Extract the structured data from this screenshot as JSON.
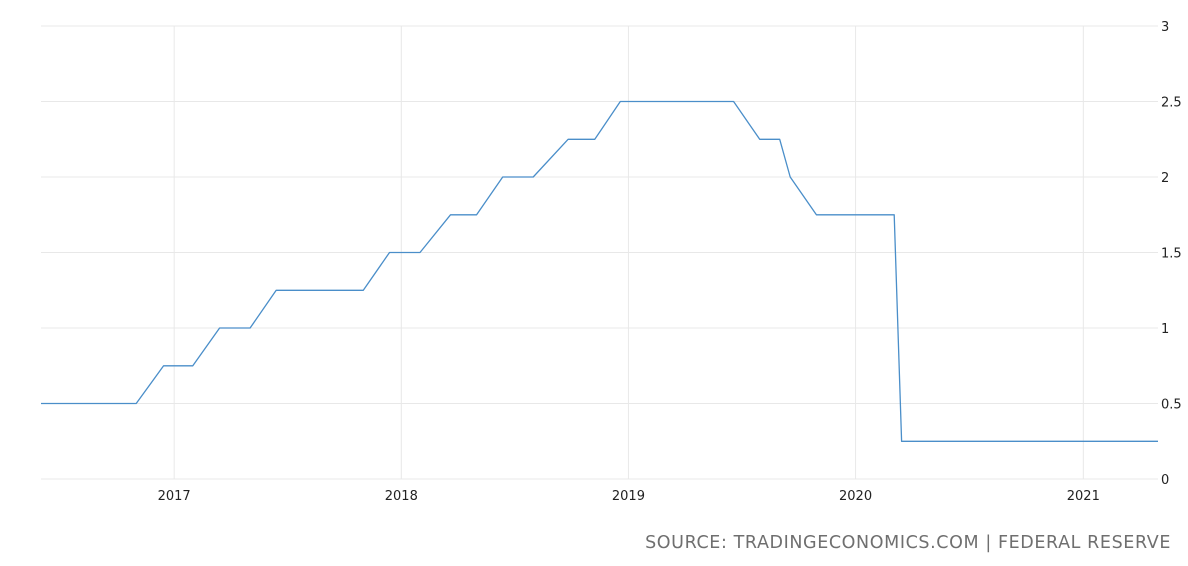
{
  "chart_data": {
    "type": "line",
    "title": "",
    "xlabel": "",
    "ylabel": "",
    "xlim": [
      "2016-06-01",
      "2021-05-01"
    ],
    "ylim": [
      0,
      3
    ],
    "grid": true,
    "legend": "none",
    "x_ticks": [
      {
        "date": "2017-01-01",
        "label": "2017"
      },
      {
        "date": "2018-01-01",
        "label": "2018"
      },
      {
        "date": "2019-01-01",
        "label": "2019"
      },
      {
        "date": "2020-01-01",
        "label": "2020"
      },
      {
        "date": "2021-01-01",
        "label": "2021"
      }
    ],
    "y_ticks": [
      {
        "value": 0,
        "label": "0"
      },
      {
        "value": 0.5,
        "label": "0.5"
      },
      {
        "value": 1,
        "label": "1"
      },
      {
        "value": 1.5,
        "label": "1.5"
      },
      {
        "value": 2,
        "label": "2"
      },
      {
        "value": 2.5,
        "label": "2.5"
      },
      {
        "value": 3,
        "label": "3"
      }
    ],
    "colors": {
      "line": "#4a8ec9",
      "grid": "#e8e8e8",
      "text": "#222222"
    },
    "series": [
      {
        "x": [
          "2016-06-01",
          "2016-11-01",
          "2016-12-15",
          "2017-01-31",
          "2017-03-15",
          "2017-05-03",
          "2017-06-14",
          "2017-11-01",
          "2017-12-13",
          "2018-01-31",
          "2018-03-21",
          "2018-05-02",
          "2018-06-13",
          "2018-08-01",
          "2018-09-26",
          "2018-11-08",
          "2018-12-19",
          "2019-06-19",
          "2019-07-31",
          "2019-09-01",
          "2019-09-18",
          "2019-10-30",
          "2019-12-11",
          "2020-01-29",
          "2020-03-03",
          "2020-03-15",
          "2021-05-01"
        ],
        "values": [
          0.5,
          0.5,
          0.75,
          0.75,
          1,
          1,
          1.25,
          1.25,
          1.5,
          1.5,
          1.75,
          1.75,
          2,
          2,
          2.25,
          2.25,
          2.5,
          2.5,
          2.25,
          2.25,
          2,
          1.75,
          1.75,
          1.75,
          1.75,
          0.25,
          0.25
        ]
      }
    ]
  },
  "footer": {
    "source": "SOURCE: TRADINGECONOMICS.COM | FEDERAL RESERVE"
  }
}
